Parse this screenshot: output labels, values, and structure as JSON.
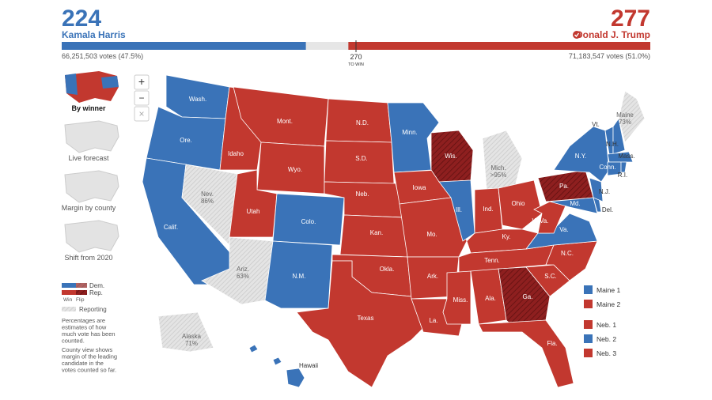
{
  "header": {
    "threshold": {
      "value": 270,
      "label": "TO WIN"
    },
    "dem": {
      "votes": 224,
      "name": "Kamala Harris",
      "popular": "66,251,503 votes (47.5%)",
      "color": "#3a73b8"
    },
    "rep": {
      "votes": 277,
      "name": "Donald J. Trump",
      "popular": "71,183,547 votes (51.0%)",
      "color": "#c2382f"
    }
  },
  "controls": {
    "zoom_in": "+",
    "zoom_out": "−",
    "reset": "×"
  },
  "views": [
    "By winner",
    "Live forecast",
    "Margin by county",
    "Shift from 2020"
  ],
  "legend": {
    "dem": "Dem.",
    "rep": "Rep.",
    "win": "Win",
    "flip": "Flip",
    "reporting": "Reporting",
    "note1": [
      "Percentages are",
      "estimates of how",
      "much vote has been",
      "counted."
    ],
    "note2": [
      "County view shows",
      "margin of the leading",
      "candidate in the",
      "votes counted so far."
    ]
  },
  "colors": {
    "dem": "#3a73b8",
    "rep": "#c2382f",
    "flip": "#8e1f1f",
    "reporting": "#dcdcdc"
  },
  "districts": [
    {
      "label": "Maine 1",
      "party": "dem"
    },
    {
      "label": "Maine 2",
      "party": "rep"
    },
    {
      "label": "Neb. 1",
      "party": "rep"
    },
    {
      "label": "Neb. 2",
      "party": "dem"
    },
    {
      "label": "Neb. 3",
      "party": "rep"
    }
  ],
  "map": {
    "states": [
      {
        "label": "Wash.",
        "party": "dem"
      },
      {
        "label": "Ore.",
        "party": "dem"
      },
      {
        "label": "Calif.",
        "party": "dem"
      },
      {
        "label": "Nev.",
        "party": "reporting",
        "pct": "86%"
      },
      {
        "label": "Idaho",
        "party": "rep"
      },
      {
        "label": "Mont.",
        "party": "rep"
      },
      {
        "label": "Wyo.",
        "party": "rep"
      },
      {
        "label": "Utah",
        "party": "rep"
      },
      {
        "label": "Colo.",
        "party": "dem"
      },
      {
        "label": "Ariz.",
        "party": "reporting",
        "pct": "63%"
      },
      {
        "label": "N.M.",
        "party": "dem"
      },
      {
        "label": "N.D.",
        "party": "rep"
      },
      {
        "label": "S.D.",
        "party": "rep"
      },
      {
        "label": "Neb.",
        "party": "rep"
      },
      {
        "label": "Kan.",
        "party": "rep"
      },
      {
        "label": "Okla.",
        "party": "rep"
      },
      {
        "label": "Texas",
        "party": "rep"
      },
      {
        "label": "Minn.",
        "party": "dem"
      },
      {
        "label": "Iowa",
        "party": "rep"
      },
      {
        "label": "Mo.",
        "party": "rep"
      },
      {
        "label": "Ark.",
        "party": "rep"
      },
      {
        "label": "La.",
        "party": "rep"
      },
      {
        "label": "Wis.",
        "party": "flip"
      },
      {
        "label": "Ill.",
        "party": "dem"
      },
      {
        "label": "Mich.",
        "party": "reporting",
        "pct": ">95%"
      },
      {
        "label": "Ind.",
        "party": "rep"
      },
      {
        "label": "Ohio",
        "party": "rep"
      },
      {
        "label": "Ky.",
        "party": "rep"
      },
      {
        "label": "Tenn.",
        "party": "rep"
      },
      {
        "label": "Miss.",
        "party": "rep"
      },
      {
        "label": "Ala.",
        "party": "rep"
      },
      {
        "label": "Ga.",
        "party": "flip"
      },
      {
        "label": "Fla.",
        "party": "rep"
      },
      {
        "label": "S.C.",
        "party": "rep"
      },
      {
        "label": "N.C.",
        "party": "rep"
      },
      {
        "label": "Va.",
        "party": "dem"
      },
      {
        "label": "W.Va.",
        "party": "rep"
      },
      {
        "label": "Pa.",
        "party": "flip"
      },
      {
        "label": "N.Y.",
        "party": "dem"
      },
      {
        "label": "Md.",
        "party": "dem"
      },
      {
        "label": "Del.",
        "party": "dem"
      },
      {
        "label": "N.J.",
        "party": "dem"
      },
      {
        "label": "Vt.",
        "party": "dem"
      },
      {
        "label": "N.H.",
        "party": "dem"
      },
      {
        "label": "Maine",
        "party": "reporting",
        "pct": "73%"
      },
      {
        "label": "Mass.",
        "party": "dem"
      },
      {
        "label": "Conn.",
        "party": "dem"
      },
      {
        "label": "R.I.",
        "party": "dem"
      },
      {
        "label": "Alaska",
        "party": "reporting",
        "pct": "71%"
      },
      {
        "label": "Hawaii",
        "party": "dem"
      }
    ]
  }
}
